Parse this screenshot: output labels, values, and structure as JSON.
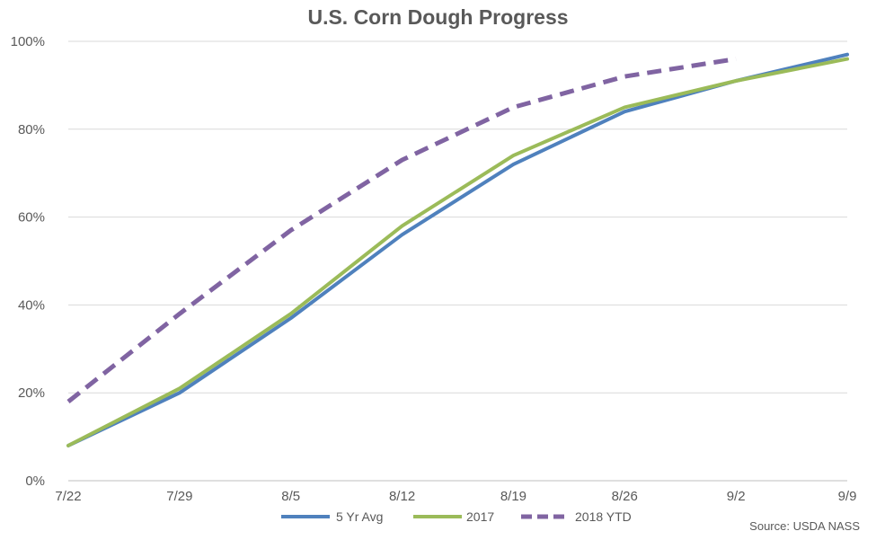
{
  "chart_data": {
    "type": "line",
    "title": "U.S. Corn Dough Progress",
    "source": "Source: USDA NASS",
    "x": [
      "7/22",
      "7/29",
      "8/5",
      "8/12",
      "8/19",
      "8/26",
      "9/2",
      "9/9"
    ],
    "yticks": [
      "0%",
      "20%",
      "40%",
      "60%",
      "80%",
      "100%"
    ],
    "ylim": [
      0,
      100
    ],
    "grid": true,
    "legend_position": "bottom",
    "series": [
      {
        "name": "5 Yr Avg",
        "color": "#4f81bd",
        "dash": false,
        "values": [
          8,
          20,
          37,
          56,
          72,
          84,
          91,
          97
        ]
      },
      {
        "name": "2017",
        "color": "#9bbb59",
        "dash": false,
        "values": [
          8,
          21,
          38,
          58,
          74,
          85,
          91,
          96
        ]
      },
      {
        "name": "2018 YTD",
        "color": "#8064a2",
        "dash": true,
        "values": [
          18,
          38,
          57,
          73,
          85,
          92,
          96,
          null
        ]
      }
    ]
  }
}
